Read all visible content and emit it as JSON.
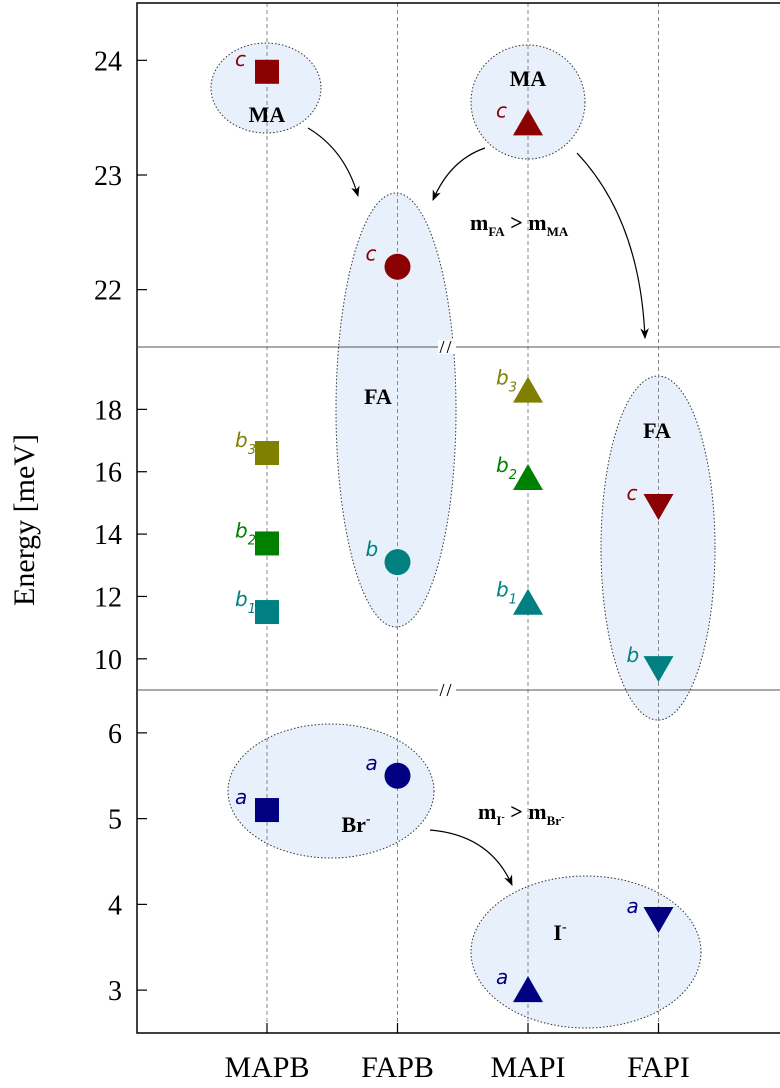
{
  "chart_data": {
    "type": "scatter",
    "y_label": "Energy [meV]",
    "categories": [
      "MAPB",
      "FAPB",
      "MAPI",
      "FAPI"
    ],
    "panels": [
      {
        "ylim": [
          21.5,
          24.5
        ],
        "yticks": [
          22,
          23,
          24
        ]
      },
      {
        "ylim": [
          9,
          20
        ],
        "yticks": [
          10,
          12,
          14,
          16,
          18
        ]
      },
      {
        "ylim": [
          2.5,
          6.5
        ],
        "yticks": [
          3,
          4,
          5,
          6
        ]
      }
    ],
    "grid": true,
    "series": [
      {
        "name": "MAPB",
        "marker": "square",
        "points": [
          {
            "label": "c",
            "color": "#8b0000",
            "value": 23.9
          },
          {
            "label": "b",
            "sub": "3",
            "color": "#808000",
            "value": 16.6
          },
          {
            "label": "b",
            "sub": "2",
            "color": "#008000",
            "value": 13.7
          },
          {
            "label": "b",
            "sub": "1",
            "color": "#008080",
            "value": 11.5
          },
          {
            "label": "a",
            "color": "#000080",
            "value": 5.1
          }
        ]
      },
      {
        "name": "FAPB",
        "marker": "circle",
        "points": [
          {
            "label": "c",
            "color": "#8b0000",
            "value": 22.2
          },
          {
            "label": "b",
            "color": "#008080",
            "value": 13.1
          },
          {
            "label": "a",
            "color": "#000080",
            "value": 5.5
          }
        ]
      },
      {
        "name": "MAPI",
        "marker": "triangle-up",
        "points": [
          {
            "label": "c",
            "color": "#8b0000",
            "value": 23.45
          },
          {
            "label": "b",
            "sub": "3",
            "color": "#808000",
            "value": 18.6
          },
          {
            "label": "b",
            "sub": "2",
            "color": "#008000",
            "value": 15.8
          },
          {
            "label": "b",
            "sub": "1",
            "color": "#008080",
            "value": 11.8
          },
          {
            "label": "a",
            "color": "#000080",
            "value": 3.0
          }
        ]
      },
      {
        "name": "FAPI",
        "marker": "triangle-down",
        "points": [
          {
            "label": "c",
            "color": "#8b0000",
            "value": 14.9
          },
          {
            "label": "b",
            "color": "#008080",
            "value": 9.7
          },
          {
            "label": "a",
            "color": "#000080",
            "value": 3.83
          }
        ]
      }
    ],
    "annotations": [
      {
        "text": "MA"
      },
      {
        "text": "MA"
      },
      {
        "text": "FA"
      },
      {
        "text": "FA"
      },
      {
        "text": "Br",
        "sup": "-"
      },
      {
        "text": "I",
        "sup": "-"
      },
      {
        "parts": [
          "m",
          "FA",
          " > m",
          "MA"
        ]
      },
      {
        "parts": [
          "m",
          "I",
          "-",
          " > m",
          "Br",
          "-"
        ]
      }
    ]
  }
}
